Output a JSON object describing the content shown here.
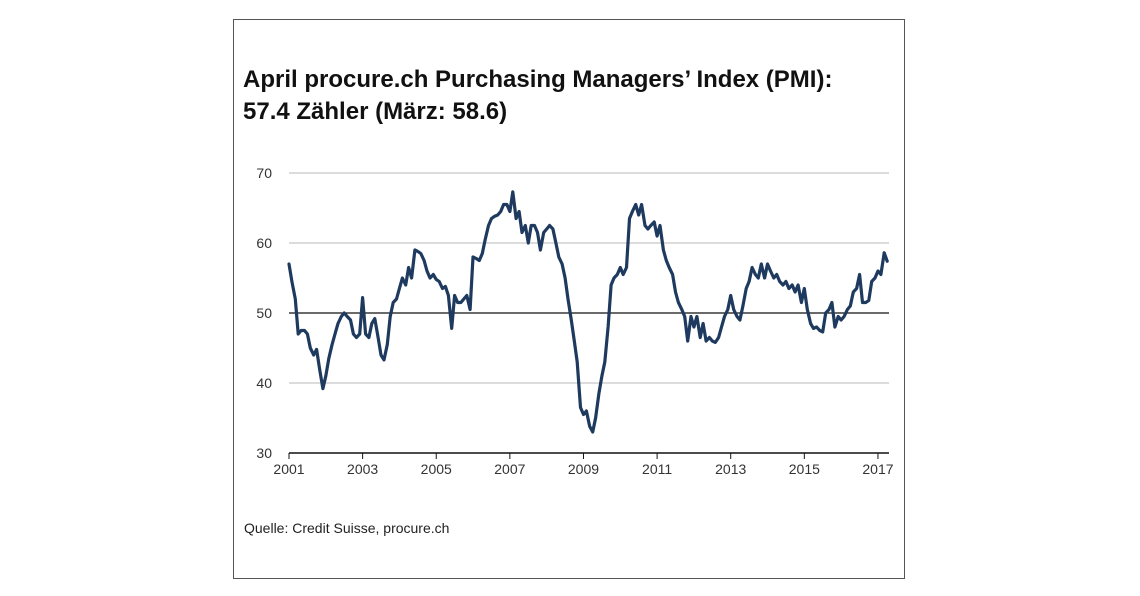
{
  "chart_data": {
    "type": "line",
    "title": "April procure.ch Purchasing Managers’ Index (PMI):",
    "subtitle": "57.4 Zähler (März: 58.6)",
    "source": "Quelle: Credit Suisse, procure.ch",
    "xlabel": "",
    "ylabel": "",
    "ylim": [
      30,
      70
    ],
    "xlim": [
      2001,
      2017.3
    ],
    "yticks": [
      30,
      40,
      50,
      60,
      70
    ],
    "xticks": [
      2001,
      2003,
      2005,
      2007,
      2009,
      2011,
      2013,
      2015,
      2017
    ],
    "grid": true,
    "reference_line": 50,
    "colors": {
      "line": "#1f3a5f",
      "grid": "#b9b9b9",
      "reference": "#111111"
    },
    "series": [
      {
        "values": [
          [
            2001.0,
            57.0
          ],
          [
            2001.08,
            54.5
          ],
          [
            2001.17,
            52.0
          ],
          [
            2001.25,
            47.0
          ],
          [
            2001.33,
            47.5
          ],
          [
            2001.42,
            47.5
          ],
          [
            2001.5,
            47.0
          ],
          [
            2001.58,
            45.0
          ],
          [
            2001.67,
            44.0
          ],
          [
            2001.75,
            44.8
          ],
          [
            2001.83,
            42.0
          ],
          [
            2001.92,
            39.2
          ],
          [
            2002.0,
            41.0
          ],
          [
            2002.08,
            43.5
          ],
          [
            2002.17,
            45.5
          ],
          [
            2002.25,
            47.0
          ],
          [
            2002.33,
            48.5
          ],
          [
            2002.42,
            49.5
          ],
          [
            2002.5,
            50.0
          ],
          [
            2002.58,
            49.5
          ],
          [
            2002.67,
            49.0
          ],
          [
            2002.75,
            47.0
          ],
          [
            2002.83,
            46.5
          ],
          [
            2002.92,
            47.0
          ],
          [
            2003.0,
            52.2
          ],
          [
            2003.08,
            47.0
          ],
          [
            2003.17,
            46.5
          ],
          [
            2003.25,
            48.5
          ],
          [
            2003.33,
            49.2
          ],
          [
            2003.42,
            46.5
          ],
          [
            2003.5,
            44.0
          ],
          [
            2003.58,
            43.3
          ],
          [
            2003.67,
            45.5
          ],
          [
            2003.75,
            49.5
          ],
          [
            2003.83,
            51.5
          ],
          [
            2003.92,
            52.0
          ],
          [
            2004.0,
            53.5
          ],
          [
            2004.08,
            55.0
          ],
          [
            2004.17,
            54.0
          ],
          [
            2004.25,
            56.5
          ],
          [
            2004.33,
            55.0
          ],
          [
            2004.42,
            59.0
          ],
          [
            2004.5,
            58.8
          ],
          [
            2004.58,
            58.5
          ],
          [
            2004.67,
            57.5
          ],
          [
            2004.75,
            56.0
          ],
          [
            2004.83,
            55.0
          ],
          [
            2004.92,
            55.5
          ],
          [
            2005.0,
            54.8
          ],
          [
            2005.08,
            54.5
          ],
          [
            2005.17,
            53.5
          ],
          [
            2005.25,
            53.8
          ],
          [
            2005.33,
            52.5
          ],
          [
            2005.42,
            47.8
          ],
          [
            2005.5,
            52.5
          ],
          [
            2005.58,
            51.5
          ],
          [
            2005.67,
            51.5
          ],
          [
            2005.75,
            52.0
          ],
          [
            2005.83,
            52.5
          ],
          [
            2005.92,
            50.5
          ],
          [
            2006.0,
            58.0
          ],
          [
            2006.08,
            57.8
          ],
          [
            2006.17,
            57.5
          ],
          [
            2006.25,
            58.5
          ],
          [
            2006.33,
            60.5
          ],
          [
            2006.42,
            62.5
          ],
          [
            2006.5,
            63.5
          ],
          [
            2006.58,
            63.8
          ],
          [
            2006.67,
            64.0
          ],
          [
            2006.75,
            64.5
          ],
          [
            2006.83,
            65.5
          ],
          [
            2006.92,
            65.5
          ],
          [
            2007.0,
            64.5
          ],
          [
            2007.08,
            67.3
          ],
          [
            2007.17,
            63.5
          ],
          [
            2007.25,
            64.5
          ],
          [
            2007.33,
            61.5
          ],
          [
            2007.42,
            62.5
          ],
          [
            2007.5,
            60.0
          ],
          [
            2007.58,
            62.5
          ],
          [
            2007.67,
            62.5
          ],
          [
            2007.75,
            61.5
          ],
          [
            2007.83,
            59.0
          ],
          [
            2007.92,
            61.5
          ],
          [
            2008.0,
            62.0
          ],
          [
            2008.08,
            62.5
          ],
          [
            2008.17,
            62.0
          ],
          [
            2008.25,
            60.0
          ],
          [
            2008.33,
            58.0
          ],
          [
            2008.42,
            57.0
          ],
          [
            2008.5,
            55.0
          ],
          [
            2008.58,
            52.0
          ],
          [
            2008.67,
            49.0
          ],
          [
            2008.75,
            46.0
          ],
          [
            2008.83,
            43.0
          ],
          [
            2008.92,
            36.5
          ],
          [
            2009.0,
            35.5
          ],
          [
            2009.08,
            36.0
          ],
          [
            2009.17,
            33.8
          ],
          [
            2009.25,
            33.0
          ],
          [
            2009.33,
            35.0
          ],
          [
            2009.42,
            38.5
          ],
          [
            2009.5,
            41.0
          ],
          [
            2009.58,
            43.0
          ],
          [
            2009.67,
            48.0
          ],
          [
            2009.75,
            54.0
          ],
          [
            2009.83,
            55.0
          ],
          [
            2009.92,
            55.5
          ],
          [
            2010.0,
            56.5
          ],
          [
            2010.08,
            55.5
          ],
          [
            2010.17,
            56.5
          ],
          [
            2010.25,
            63.5
          ],
          [
            2010.33,
            64.5
          ],
          [
            2010.42,
            65.5
          ],
          [
            2010.5,
            64.0
          ],
          [
            2010.58,
            65.5
          ],
          [
            2010.67,
            62.5
          ],
          [
            2010.75,
            62.0
          ],
          [
            2010.83,
            62.5
          ],
          [
            2010.92,
            63.0
          ],
          [
            2011.0,
            61.0
          ],
          [
            2011.08,
            62.5
          ],
          [
            2011.17,
            59.0
          ],
          [
            2011.25,
            57.5
          ],
          [
            2011.33,
            56.5
          ],
          [
            2011.42,
            55.5
          ],
          [
            2011.5,
            53.0
          ],
          [
            2011.58,
            51.5
          ],
          [
            2011.67,
            50.5
          ],
          [
            2011.75,
            49.5
          ],
          [
            2011.83,
            46.0
          ],
          [
            2011.92,
            49.5
          ],
          [
            2012.0,
            48.0
          ],
          [
            2012.08,
            49.5
          ],
          [
            2012.17,
            46.5
          ],
          [
            2012.25,
            48.5
          ],
          [
            2012.33,
            46.0
          ],
          [
            2012.42,
            46.5
          ],
          [
            2012.5,
            46.0
          ],
          [
            2012.58,
            45.8
          ],
          [
            2012.67,
            46.5
          ],
          [
            2012.75,
            48.0
          ],
          [
            2012.83,
            49.5
          ],
          [
            2012.92,
            50.5
          ],
          [
            2013.0,
            52.5
          ],
          [
            2013.08,
            50.5
          ],
          [
            2013.17,
            49.5
          ],
          [
            2013.25,
            49.0
          ],
          [
            2013.33,
            51.0
          ],
          [
            2013.42,
            53.5
          ],
          [
            2013.5,
            54.5
          ],
          [
            2013.58,
            56.5
          ],
          [
            2013.67,
            55.5
          ],
          [
            2013.75,
            55.0
          ],
          [
            2013.83,
            57.0
          ],
          [
            2013.92,
            55.0
          ],
          [
            2014.0,
            57.0
          ],
          [
            2014.08,
            56.0
          ],
          [
            2014.17,
            55.0
          ],
          [
            2014.25,
            55.5
          ],
          [
            2014.33,
            54.5
          ],
          [
            2014.42,
            54.0
          ],
          [
            2014.5,
            54.5
          ],
          [
            2014.58,
            53.5
          ],
          [
            2014.67,
            54.0
          ],
          [
            2014.75,
            53.0
          ],
          [
            2014.83,
            54.0
          ],
          [
            2014.92,
            51.5
          ],
          [
            2015.0,
            53.5
          ],
          [
            2015.08,
            50.5
          ],
          [
            2015.17,
            48.5
          ],
          [
            2015.25,
            47.8
          ],
          [
            2015.33,
            48.0
          ],
          [
            2015.42,
            47.5
          ],
          [
            2015.5,
            47.3
          ],
          [
            2015.58,
            50.0
          ],
          [
            2015.67,
            50.5
          ],
          [
            2015.75,
            51.5
          ],
          [
            2015.83,
            48.0
          ],
          [
            2015.92,
            49.5
          ],
          [
            2016.0,
            49.0
          ],
          [
            2016.08,
            49.5
          ],
          [
            2016.17,
            50.5
          ],
          [
            2016.25,
            51.0
          ],
          [
            2016.33,
            53.0
          ],
          [
            2016.42,
            53.5
          ],
          [
            2016.5,
            55.5
          ],
          [
            2016.58,
            51.5
          ],
          [
            2016.67,
            51.5
          ],
          [
            2016.75,
            51.8
          ],
          [
            2016.83,
            54.5
          ],
          [
            2016.92,
            55.0
          ],
          [
            2017.0,
            56.0
          ],
          [
            2017.08,
            55.5
          ],
          [
            2017.17,
            58.6
          ],
          [
            2017.25,
            57.4
          ]
        ]
      }
    ]
  }
}
